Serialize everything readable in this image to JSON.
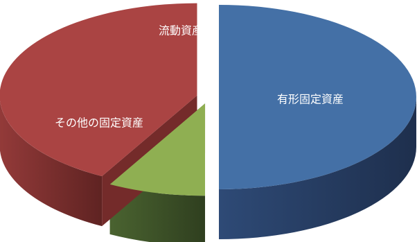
{
  "chart_data": {
    "type": "pie",
    "slices": [
      {
        "label": "有形固定資産",
        "value": 50,
        "color": "#4470a6",
        "dark": "#24375a"
      },
      {
        "label": "流動資産",
        "value": 8,
        "color": "#8faf52",
        "dark": "#3f5325"
      },
      {
        "label": "その他の固定資産",
        "value": 42,
        "color": "#aa4443",
        "dark": "#742b2a"
      }
    ],
    "exploded": true,
    "three_d": true,
    "legend": "none"
  }
}
